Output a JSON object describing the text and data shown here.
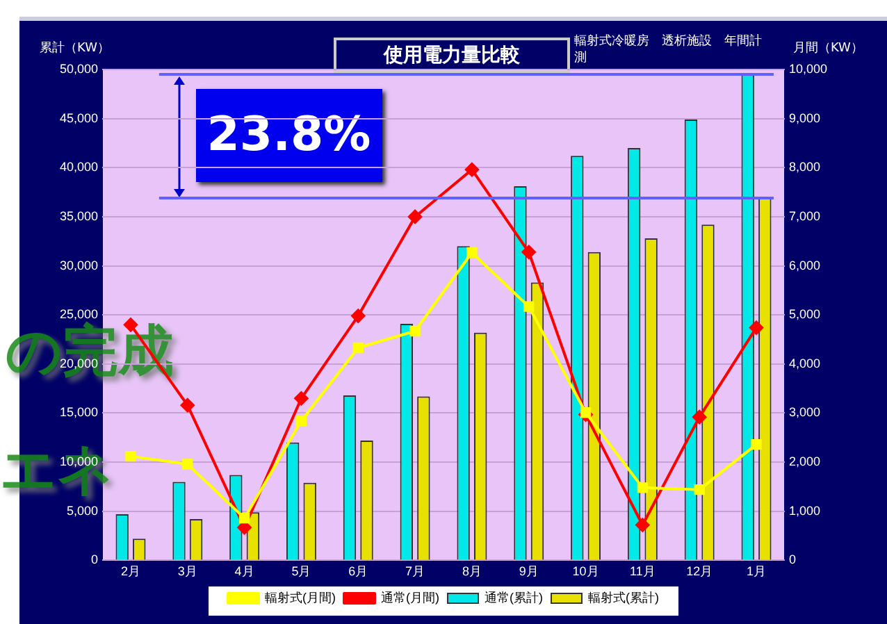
{
  "chart_data": {
    "type": "bar",
    "title": "使用電力量比較",
    "subtitle": "輻射式冷暖房　透析施設　年間計測",
    "ylabel": "累計（KW）",
    "y2label": "月間（KW）",
    "categories": [
      "2月",
      "3月",
      "4月",
      "5月",
      "6月",
      "7月",
      "8月",
      "9月",
      "10月",
      "11月",
      "12月",
      "1月"
    ],
    "series": [
      {
        "name": "通常(累計)",
        "color": "#00e8e8",
        "values": [
          4700,
          8000,
          8700,
          12000,
          16800,
          24100,
          32000,
          38100,
          41200,
          42000,
          44900,
          49500
        ]
      },
      {
        "name": "輻射式(累計)",
        "color": "#e8e000",
        "values": [
          2200,
          4200,
          4900,
          7900,
          12200,
          16700,
          23200,
          28300,
          31400,
          32800,
          34200,
          36900
        ]
      },
      {
        "name": "通常(月間)",
        "type": "line",
        "axis": "y2",
        "color": "#ff0000",
        "marker": "diamond",
        "values": [
          4800,
          3160,
          670,
          3300,
          4980,
          7000,
          7960,
          6280,
          2970,
          720,
          2920,
          4740
        ]
      },
      {
        "name": "輻射式(月間)",
        "type": "line",
        "axis": "y2",
        "color": "#ffff00",
        "marker": "square",
        "values": [
          2120,
          1960,
          860,
          2840,
          4330,
          4670,
          6270,
          5170,
          3010,
          1480,
          1440,
          2360
        ]
      }
    ],
    "ylim": [
      0,
      50000
    ],
    "yticks": [
      0,
      {
        "value": 5000,
        "label": "5,000"
      },
      {
        "value": 10000,
        "label": "10,000"
      },
      {
        "value": 15000,
        "label": "15,000"
      },
      {
        "value": 20000,
        "label": "20,000"
      },
      {
        "value": 25000,
        "label": "25,000"
      },
      {
        "value": 30000,
        "label": "30,000"
      },
      {
        "value": 35000,
        "label": "35,000"
      },
      {
        "value": 40000,
        "label": "40,000"
      },
      {
        "value": 45000,
        "label": "45,000"
      },
      {
        "value": 50000,
        "label": "50,000"
      }
    ],
    "y2lim": [
      0,
      10000
    ],
    "y2ticks": [
      0,
      {
        "value": 1000,
        "label": "1,000"
      },
      {
        "value": 2000,
        "label": "2,000"
      },
      {
        "value": 3000,
        "label": "3,000"
      },
      {
        "value": 4000,
        "label": "4,000"
      },
      {
        "value": 5000,
        "label": "5,000"
      },
      {
        "value": 6000,
        "label": "6,000"
      },
      {
        "value": 7000,
        "label": "7,000"
      },
      {
        "value": 8000,
        "label": "8,000"
      },
      {
        "value": 9000,
        "label": "9,000"
      },
      {
        "value": 10000,
        "label": "10,000"
      }
    ],
    "ref_lines": [
      {
        "axis": "y",
        "value": 49500,
        "color": "#6060ff"
      },
      {
        "axis": "y",
        "value": 36900,
        "color": "#6060ff"
      }
    ],
    "annotations": [
      "23.8%",
      "の完成",
      "エネ"
    ],
    "grid": "y",
    "legend": "bottom",
    "line_style": "solid"
  }
}
